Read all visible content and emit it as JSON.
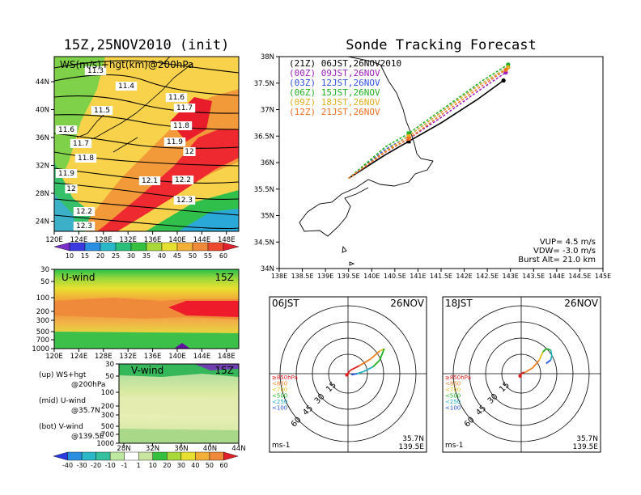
{
  "left_title": "15Z,25NOV2010 (init)",
  "right_title": "Sonde Tracking Forecast",
  "ws_panel": {
    "label": "WS(m/s)+hgt(km)@200hPa",
    "lat_ticks": [
      "44N",
      "40N",
      "36N",
      "32N",
      "28N",
      "24N"
    ],
    "lon_ticks": [
      "120E",
      "124E",
      "128E",
      "132E",
      "136E",
      "140E",
      "144E",
      "148E"
    ],
    "contour_labels": [
      "11.3",
      "11.4",
      "11.5",
      "11.6",
      "11.6",
      "11.7",
      "11.7",
      "11.8",
      "11.8",
      "11.9",
      "11.9",
      "12",
      "12",
      "12.1",
      "12.2",
      "12.2",
      "12.3",
      "12.3"
    ],
    "colorbar_labels": [
      "10",
      "15",
      "20",
      "25",
      "30",
      "35",
      "40",
      "45",
      "50",
      "55",
      "60"
    ]
  },
  "u_panel": {
    "label": "U-wind",
    "time": "15Z",
    "p_ticks": [
      "30",
      "50",
      "100",
      "200",
      "300",
      "500",
      "700",
      "1000"
    ],
    "lon_ticks": [
      "120E",
      "124E",
      "128E",
      "132E",
      "136E",
      "140E",
      "144E",
      "148E"
    ]
  },
  "v_panel": {
    "label": "V-wind",
    "time": "15Z",
    "p_ticks": [
      "30",
      "50",
      "100",
      "200",
      "300",
      "500",
      "700",
      "1000"
    ],
    "lat_ticks": [
      "28N",
      "32N",
      "36N",
      "40N",
      "44N"
    ],
    "colorbar_labels": [
      "-40",
      "-30",
      "-20",
      "-10",
      "-1",
      "1",
      "10",
      "20",
      "30",
      "40",
      "50",
      "60"
    ]
  },
  "legend_notes": [
    {
      "a": "(up) WS+hgt",
      "b": "@200hPa"
    },
    {
      "a": "(mid) U-wind",
      "b": "@35.7N"
    },
    {
      "a": "(bot) V-wind",
      "b": "@139.5E"
    }
  ],
  "track_map": {
    "lat_ticks": [
      "38N",
      "37.5N",
      "37N",
      "36.5N",
      "36N",
      "35.5N",
      "35N",
      "34.5N",
      "34N"
    ],
    "lon_ticks": [
      "138E",
      "138.5E",
      "139E",
      "139.5E",
      "140E",
      "140.5E",
      "141E",
      "141.5E",
      "142E",
      "142.5E",
      "143E",
      "143.5E",
      "144E",
      "144.5E",
      "145E"
    ],
    "series": [
      {
        "label": "(21Z) 06JST,26NOV2010",
        "color": "#000000"
      },
      {
        "label": "(00Z) 09JST,26NOV",
        "color": "#a020c0"
      },
      {
        "label": "(03Z) 12JST,26NOV",
        "color": "#3050e0"
      },
      {
        "label": "(06Z) 15JST,26NOV",
        "color": "#20b020"
      },
      {
        "label": "(09Z) 18JST,26NOV",
        "color": "#e0b020"
      },
      {
        "label": "(12Z) 21JST,26NOV",
        "color": "#f07020"
      }
    ],
    "params": [
      "VUP= 4.5 m/s",
      "VDW= -3.0 m/s",
      "Burst Alt= 21.0 km"
    ]
  },
  "chart_data": [
    {
      "type": "line",
      "title": "Sonde Tracking Forecast",
      "xlim": [
        138,
        145
      ],
      "ylim": [
        34,
        38
      ],
      "series": [
        {
          "name": "(21Z) 06JST,26NOV2010",
          "points": [
            [
              139.5,
              35.7
            ],
            [
              140.3,
              36.15
            ],
            [
              140.8,
              36.4
            ],
            [
              141.5,
              36.75
            ],
            [
              142.3,
              37.2
            ],
            [
              142.85,
              37.55
            ]
          ]
        },
        {
          "name": "(00Z) 09JST,26NOV",
          "points": [
            [
              139.5,
              35.7
            ],
            [
              140.3,
              36.2
            ],
            [
              140.8,
              36.45
            ],
            [
              141.5,
              36.85
            ],
            [
              142.3,
              37.35
            ],
            [
              142.9,
              37.7
            ]
          ]
        },
        {
          "name": "(03Z) 12JST,26NOV",
          "points": [
            [
              139.5,
              35.7
            ],
            [
              140.3,
              36.25
            ],
            [
              140.8,
              36.5
            ],
            [
              141.5,
              36.95
            ],
            [
              142.3,
              37.45
            ],
            [
              142.95,
              37.8
            ]
          ]
        },
        {
          "name": "(06Z) 15JST,26NOV",
          "points": [
            [
              139.5,
              35.7
            ],
            [
              140.3,
              36.3
            ],
            [
              140.8,
              36.55
            ],
            [
              141.6,
              37.05
            ],
            [
              142.4,
              37.55
            ],
            [
              142.95,
              37.85
            ]
          ]
        },
        {
          "name": "(09Z) 18JST,26NOV",
          "points": [
            [
              139.5,
              35.7
            ],
            [
              140.3,
              36.22
            ],
            [
              140.8,
              36.5
            ],
            [
              141.5,
              36.95
            ],
            [
              142.3,
              37.45
            ],
            [
              142.95,
              37.8
            ]
          ]
        },
        {
          "name": "(12Z) 21JST,26NOV",
          "points": [
            [
              139.5,
              35.7
            ],
            [
              140.3,
              36.2
            ],
            [
              140.8,
              36.45
            ],
            [
              141.5,
              36.9
            ],
            [
              142.3,
              37.4
            ],
            [
              142.9,
              37.75
            ]
          ]
        }
      ]
    },
    {
      "type": "line",
      "title": "06JST 26NOV hodograph",
      "rings": [
        "15",
        "30",
        "45",
        "60"
      ],
      "unit": "ms-1",
      "location": [
        "35.7N",
        "139.5E"
      ],
      "date": "26NOV",
      "time": "06JST",
      "legend": [
        {
          "label": "≥850hPa",
          "color": "#e02020"
        },
        {
          "label": "<850",
          "color": "#f08020"
        },
        {
          "label": "<700",
          "color": "#e0c020"
        },
        {
          "label": "<500",
          "color": "#20b020"
        },
        {
          "label": "<250",
          "color": "#20b0c0"
        },
        {
          "label": "<100",
          "color": "#2050e0"
        }
      ],
      "points": [
        [
          -1,
          -1
        ],
        [
          2,
          3
        ],
        [
          10,
          7
        ],
        [
          20,
          13
        ],
        [
          28,
          20
        ],
        [
          32,
          22
        ],
        [
          28,
          12
        ],
        [
          22,
          6
        ],
        [
          14,
          2
        ],
        [
          8,
          0
        ],
        [
          3,
          -1
        ]
      ]
    },
    {
      "type": "line",
      "title": "18JST 26NOV hodograph",
      "rings": [
        "15",
        "30",
        "45",
        "60"
      ],
      "unit": "ms-1",
      "location": [
        "35.7N",
        "139.5E"
      ],
      "date": "26NOV",
      "time": "18JST",
      "legend": [
        {
          "label": "≥850hPa",
          "color": "#e02020"
        },
        {
          "label": "<850",
          "color": "#f08020"
        },
        {
          "label": "<700",
          "color": "#e0c020"
        },
        {
          "label": "<500",
          "color": "#20b020"
        },
        {
          "label": "<250",
          "color": "#20b0c0"
        },
        {
          "label": "<100",
          "color": "#2050e0"
        }
      ],
      "points": [
        [
          -1,
          -2
        ],
        [
          1,
          1
        ],
        [
          3,
          1
        ],
        [
          10,
          5
        ],
        [
          16,
          12
        ],
        [
          19,
          19
        ],
        [
          22,
          22
        ],
        [
          26,
          21
        ],
        [
          27,
          16
        ],
        [
          26,
          12
        ],
        [
          22,
          9
        ]
      ]
    }
  ]
}
